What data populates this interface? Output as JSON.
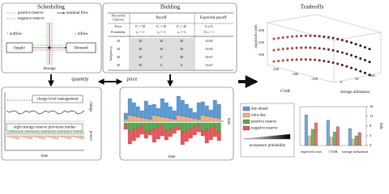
{
  "scheduling": {
    "title": "Scheduling",
    "legend": [
      "positive reserve",
      "negative reserve"
    ],
    "nominal_flow": "nominal flow",
    "outflow": "↑ outflow",
    "inflow": "↓ inflow",
    "supply": "Supply",
    "demand": "Demand",
    "storage": "Storage"
  },
  "schedule_plot": {
    "annotations": [
      "charge level management",
      "eight storage reserve provision modes"
    ],
    "x_label": "time",
    "y_labels": [
      "charge",
      "power"
    ]
  },
  "links": {
    "quantity": "quantity",
    "price": "price"
  },
  "bidding": {
    "title": "Bidding",
    "table": {
      "header": [
        "Pay-as-bid",
        "Uniform",
        "Payoff",
        "Expected payoff"
      ],
      "side_label": "bid price p",
      "rows": [
        [
          "Price",
          "P₁ = 50",
          "P₂ = 30",
          "P₃ = 40",
          "Σ πᵢ Pᵢ"
        ],
        [
          "Probability",
          "π₁ = ⅓",
          "π₂ = ⅓",
          "π₃ = ⅓",
          "Σ πᵢ = 1"
        ],
        [
          "20",
          "20",
          "20",
          "20",
          "20.00"
        ],
        [
          "30",
          "30",
          "30",
          "30",
          "30.00"
        ],
        [
          "40",
          "40",
          "0",
          "40",
          "26.67"
        ],
        [
          "50",
          "50",
          "0",
          "0",
          "16.67"
        ]
      ]
    }
  },
  "bids_plot": {
    "x_label": "time",
    "y_label": "bids"
  },
  "tradeoffs": {
    "title": "Tradeoffs",
    "scatter": {
      "axis_labels": [
        "expected costs",
        "CVaR",
        "storage utilization"
      ],
      "z_ticks": [
        "-400",
        "-350",
        "-300"
      ],
      "x_ticks": [
        "-350",
        "-300",
        "-250"
      ],
      "y_ticks": [
        "0",
        "50",
        "100"
      ]
    },
    "legend": [
      "day-ahead",
      "intra-day",
      "positive reserve",
      "negative reserve",
      "acceptance probability"
    ],
    "bars": {
      "categories": [
        "expected costs",
        "CVaR",
        "storage utilization"
      ],
      "yticks": [
        0,
        4,
        8,
        12,
        16
      ],
      "y_label": "bids"
    }
  }
}
